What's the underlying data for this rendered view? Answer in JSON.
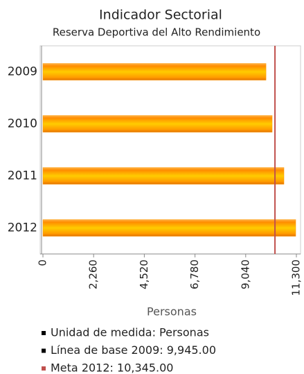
{
  "chart_data": {
    "type": "hbar",
    "title": "Indicador Sectorial",
    "subtitle": "Reserva Deportiva del Alto Rendimiento",
    "categories": [
      "2009",
      "2010",
      "2011",
      "2012"
    ],
    "values": [
      9945,
      10220,
      10745,
      11270
    ],
    "color": "#ff9900",
    "x_label": "Personas",
    "xlim": [
      0,
      11300
    ],
    "xticks": [
      0,
      {
        "value": 2260,
        "label": "2,260"
      },
      {
        "value": 4520,
        "label": "4,520"
      },
      {
        "value": 6780,
        "label": "6,780"
      },
      {
        "value": 9040,
        "label": "9,040"
      },
      {
        "value": 11300,
        "label": "11,300"
      }
    ],
    "target": {
      "value": 10345,
      "color": "#c0504d"
    },
    "legend": [
      {
        "label": "Unidad de medida: Personas",
        "color": "#000000"
      },
      {
        "label": "Línea de base 2009: 9,945.00",
        "color": "#000000"
      },
      {
        "label": "Meta 2012: 10,345.00",
        "color": "#c0504d"
      }
    ]
  }
}
